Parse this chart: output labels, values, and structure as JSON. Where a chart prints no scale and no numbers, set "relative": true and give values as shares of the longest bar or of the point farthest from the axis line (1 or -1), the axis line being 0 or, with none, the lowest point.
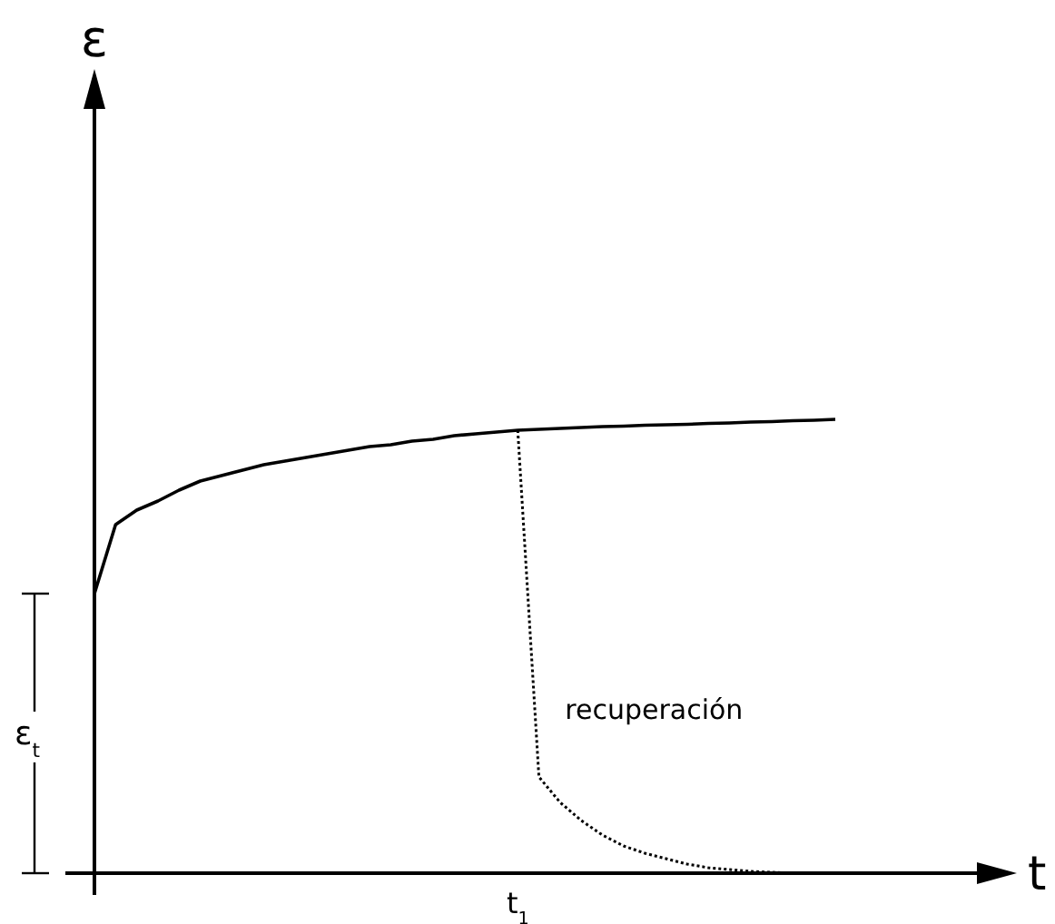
{
  "chart_data": {
    "type": "line",
    "relative": true,
    "xlabel": "t",
    "annotations": [
      "ε$_{t}$",
      "t$_{1}$",
      "ε"
    ],
    "categories": [
      null,
      null,
      null,
      null,
      null,
      null,
      null,
      null,
      null,
      null,
      null,
      null,
      null,
      null,
      null,
      null,
      null,
      null,
      null,
      null,
      null,
      null,
      null,
      null,
      null,
      null,
      null,
      null,
      null,
      null,
      null,
      null,
      null,
      null,
      null,
      null
    ],
    "series": [
      {
        "color": "#000000",
        "line_style": "solid",
        "values": [
          0.616,
          0.768,
          0.8,
          0.82,
          0.844,
          0.864,
          0.876,
          0.888,
          0.9,
          0.908,
          0.916,
          0.924,
          0.932,
          0.94,
          0.944,
          0.952,
          0.956,
          0.964,
          0.968,
          0.972,
          0.976,
          0.978,
          0.98,
          0.982,
          0.984,
          0.985,
          0.987,
          0.988,
          0.989,
          0.991,
          0.992,
          0.994,
          0.995,
          0.997,
          0.998,
          1
        ]
      },
      {
        "name": "recuperación",
        "color": "#000000",
        "line_style": "dotted",
        "values": [
          null,
          null,
          null,
          null,
          null,
          null,
          null,
          null,
          null,
          null,
          null,
          null,
          null,
          null,
          null,
          null,
          null,
          null,
          null,
          null,
          0.976,
          0.212,
          0.156,
          0.116,
          0.084,
          0.06,
          0.044,
          0.032,
          0.02,
          0.012,
          0.008,
          0.004,
          0.002,
          0,
          null,
          null
        ]
      }
    ]
  }
}
